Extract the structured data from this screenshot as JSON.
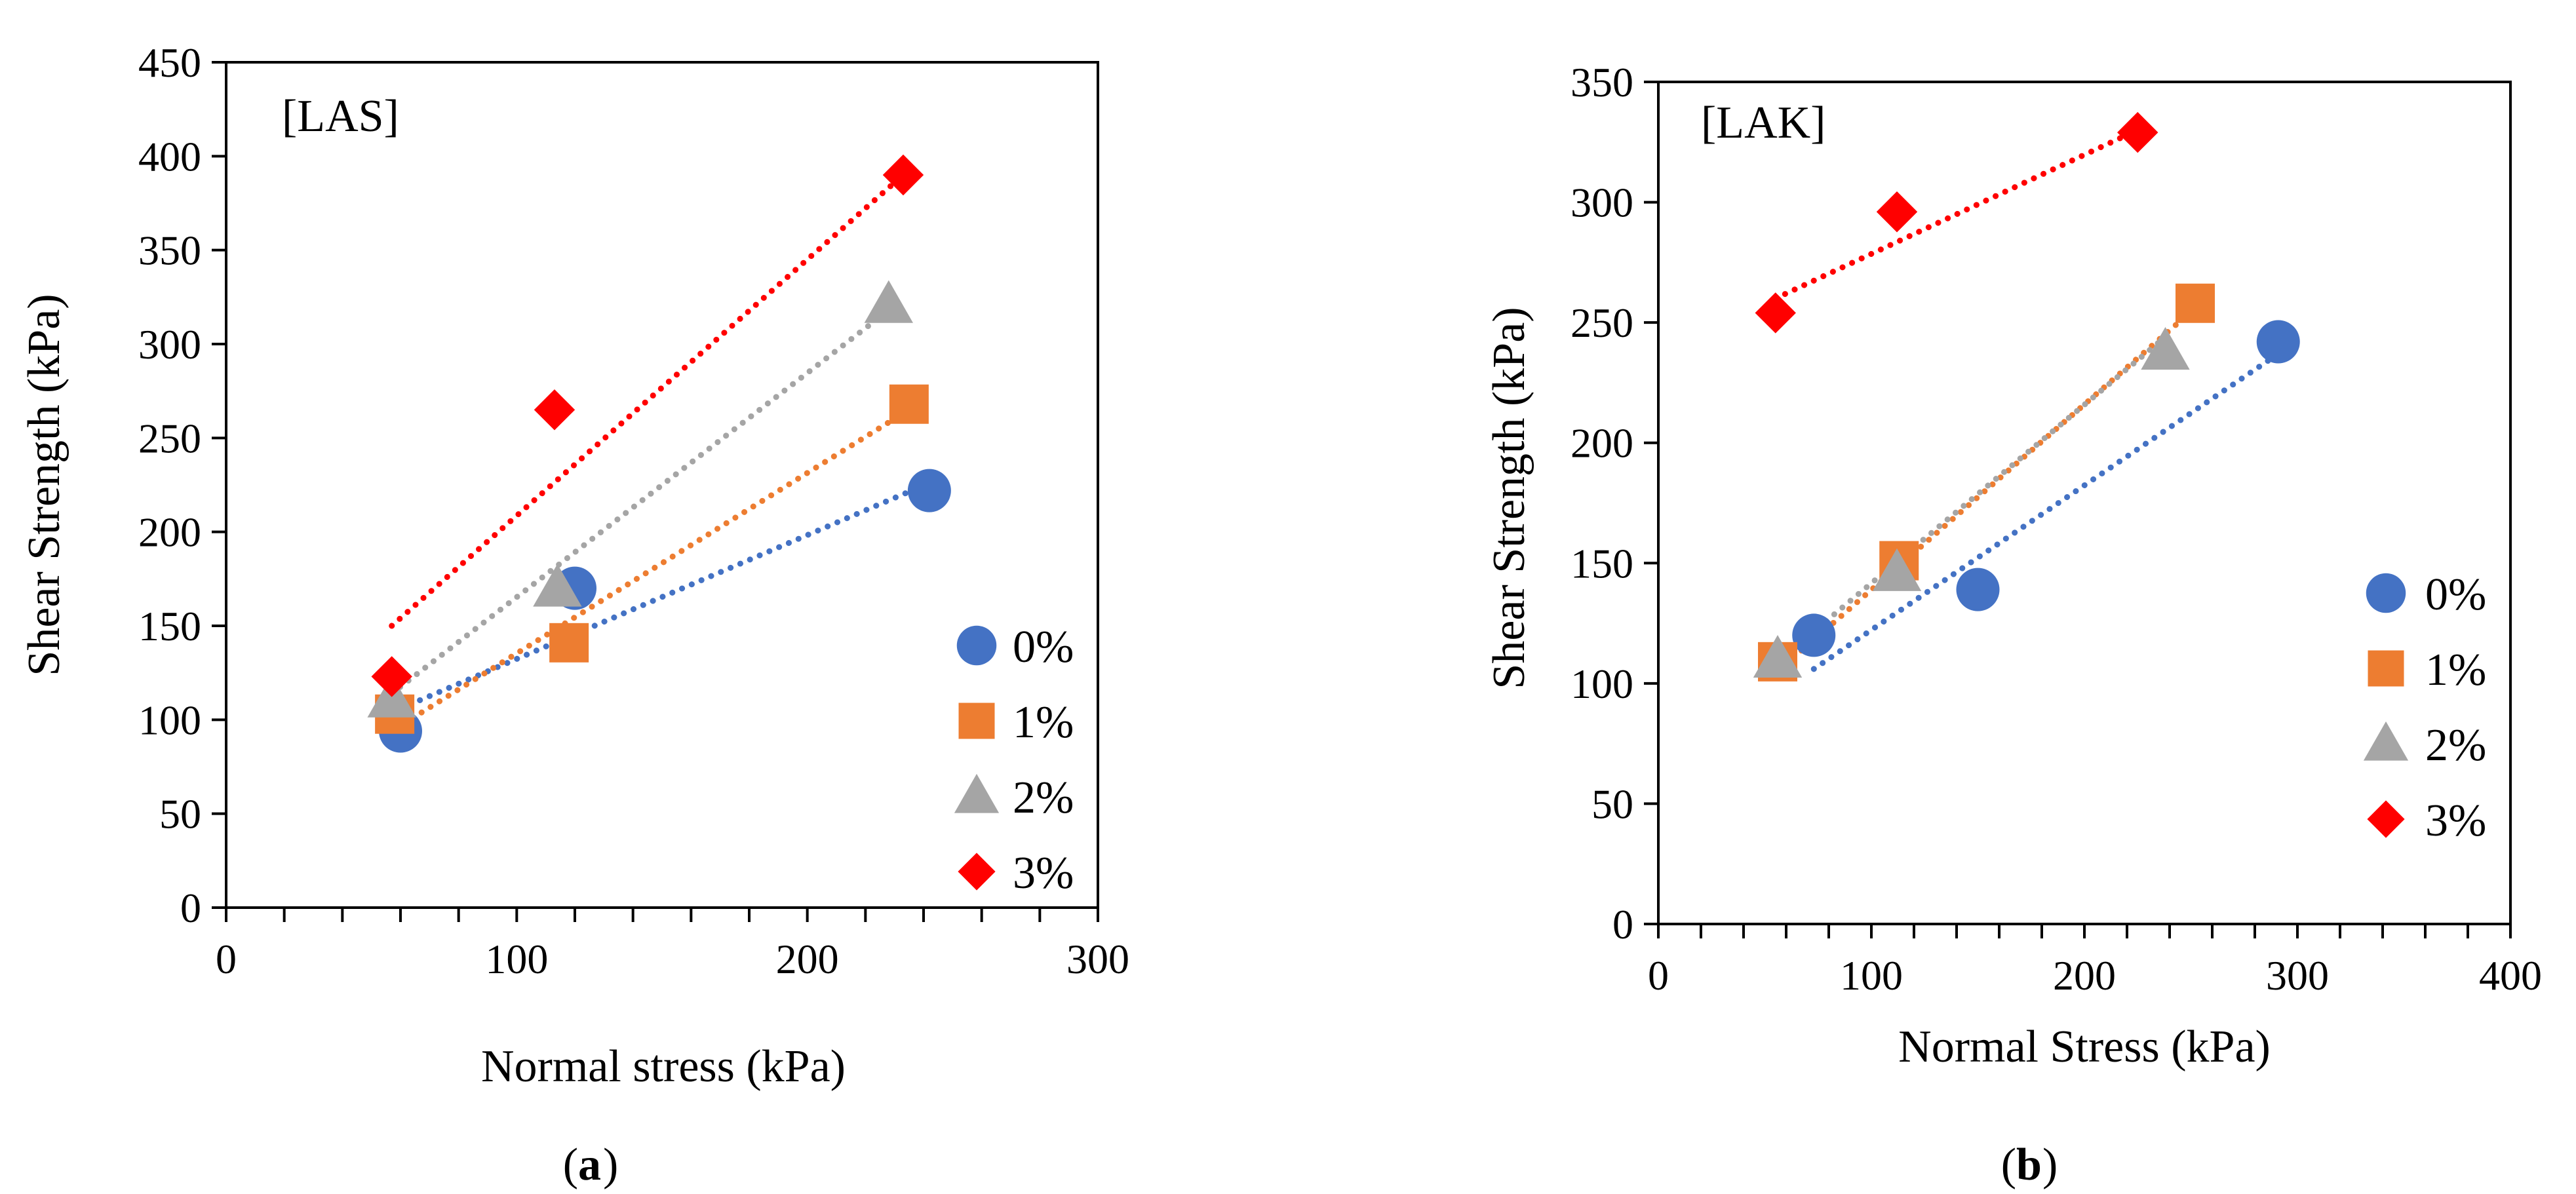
{
  "chart_data": [
    {
      "type": "scatter",
      "panel_tag": "[LAS]",
      "caption": "a",
      "xlabel": "Normal stress (kPa)",
      "ylabel": "Shear Strength (kPa)",
      "xlim": [
        0,
        300
      ],
      "ylim": [
        0,
        450
      ],
      "xticks": [
        0,
        100,
        200,
        300
      ],
      "yticks": [
        0,
        50,
        100,
        150,
        200,
        250,
        300,
        350,
        400,
        450
      ],
      "x_minor_step": 20,
      "series": [
        {
          "name": "0%",
          "color": "#4472C4",
          "marker": "circle",
          "x": [
            60,
            120,
            242
          ],
          "y": [
            94,
            170,
            222
          ],
          "trend": {
            "x": [
              60,
              242
            ],
            "y": [
              106,
              226
            ]
          }
        },
        {
          "name": "1%",
          "color": "#ED7D31",
          "marker": "square",
          "x": [
            58,
            118,
            235
          ],
          "y": [
            103,
            141,
            268
          ],
          "trend": {
            "x": [
              58,
              235
            ],
            "y": [
              95,
              265
            ]
          }
        },
        {
          "name": "2%",
          "color": "#A5A5A5",
          "marker": "triangle",
          "x": [
            57,
            114,
            228
          ],
          "y": [
            111,
            170,
            321
          ],
          "trend": {
            "x": [
              57,
              228
            ],
            "y": [
              114,
              318
            ]
          }
        },
        {
          "name": "3%",
          "color": "#FF0000",
          "marker": "diamond",
          "x": [
            57,
            113,
            233
          ],
          "y": [
            123,
            265,
            390
          ],
          "trend": {
            "x": [
              57,
              233
            ],
            "y": [
              150,
              390
            ]
          }
        }
      ]
    },
    {
      "type": "scatter",
      "panel_tag": "[LAK]",
      "caption": "b",
      "xlabel": "Normal Stress (kPa)",
      "ylabel": "Shear Strength (kPa)",
      "xlim": [
        0,
        400
      ],
      "ylim": [
        0,
        350
      ],
      "xticks": [
        0,
        100,
        200,
        300,
        400
      ],
      "yticks": [
        0,
        50,
        100,
        150,
        200,
        250,
        300,
        350
      ],
      "x_minor_step": 20,
      "series": [
        {
          "name": "0%",
          "color": "#4472C4",
          "marker": "circle",
          "x": [
            73,
            150,
            291
          ],
          "y": [
            120,
            139,
            242
          ],
          "trend": {
            "x": [
              73,
              291
            ],
            "y": [
              106,
              237
            ]
          }
        },
        {
          "name": "1%",
          "color": "#ED7D31",
          "marker": "square",
          "x": [
            56,
            113,
            252
          ],
          "y": [
            109,
            151,
            258
          ],
          "trend": {
            "x": [
              56,
              252
            ],
            "y": [
              105,
              256
            ]
          }
        },
        {
          "name": "2%",
          "color": "#A5A5A5",
          "marker": "triangle",
          "x": [
            56,
            112,
            238
          ],
          "y": [
            110,
            146,
            238
          ],
          "trend": {
            "x": [
              56,
              238
            ],
            "y": [
              109,
              244
            ]
          }
        },
        {
          "name": "3%",
          "color": "#FF0000",
          "marker": "diamond",
          "x": [
            55,
            112,
            225
          ],
          "y": [
            254,
            296,
            329
          ],
          "trend": {
            "x": [
              55,
              225
            ],
            "y": [
              260,
              330
            ]
          }
        }
      ]
    }
  ]
}
